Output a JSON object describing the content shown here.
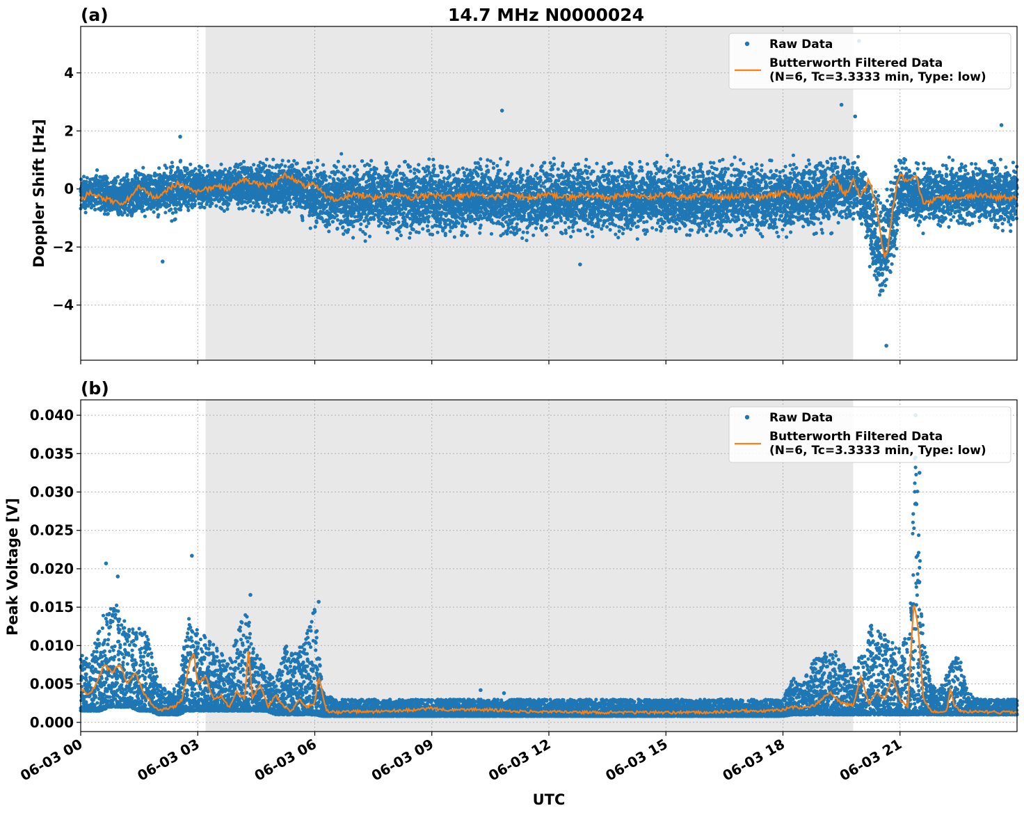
{
  "figure": {
    "title": "14.7 MHz N0000024",
    "xlabel": "UTC"
  },
  "colors": {
    "raw": "#1f77b4",
    "filtered": "#ff7f0e",
    "shade": "#e8e8e8",
    "grid": "#b0b0b0"
  },
  "chart_data": [
    {
      "type": "scatter",
      "panel": "(a)",
      "title": "14.7 MHz N0000024",
      "xlabel": "",
      "ylabel": "Doppler Shift [Hz]",
      "xlim_hours": [
        0,
        24
      ],
      "ylim": [
        -5.9,
        5.6
      ],
      "yticks": [
        {
          "value": 4,
          "label": "4"
        },
        {
          "value": 2,
          "label": "2"
        },
        {
          "value": 0,
          "label": "0"
        },
        {
          "value": -2,
          "label": "−2"
        },
        {
          "value": -4,
          "label": "−4"
        }
      ],
      "xticks": [
        {
          "hour": 0,
          "label": "06-03 00"
        },
        {
          "hour": 3,
          "label": "06-03 03"
        },
        {
          "hour": 6,
          "label": "06-03 06"
        },
        {
          "hour": 9,
          "label": "06-03 09"
        },
        {
          "hour": 12,
          "label": "06-03 12"
        },
        {
          "hour": 15,
          "label": "06-03 15"
        },
        {
          "hour": 18,
          "label": "06-03 18"
        },
        {
          "hour": 21,
          "label": "06-03 21"
        }
      ],
      "shaded_interval_hours": [
        3.2,
        19.8
      ],
      "grid": true,
      "legend": {
        "placement": "upper right",
        "entries": [
          {
            "label": "Raw Data",
            "style": "dot"
          },
          {
            "label": "Butterworth Filtered Data",
            "label2": "(N=6, Tc=3.3333 min, Type: low)",
            "style": "line"
          }
        ]
      },
      "series": [
        {
          "name": "Raw Data",
          "style": "scatter",
          "x": [
            0.0,
            0.5,
            1.0,
            1.5,
            2.0,
            2.5,
            3.0,
            3.5,
            4.0,
            4.5,
            5.0,
            5.5,
            6.0,
            6.5,
            7.0,
            7.5,
            8.0,
            8.5,
            9.0,
            9.5,
            10.0,
            10.5,
            11.0,
            11.5,
            12.0,
            12.5,
            13.0,
            13.5,
            14.0,
            14.5,
            15.0,
            15.5,
            16.0,
            16.5,
            17.0,
            17.5,
            18.0,
            18.5,
            19.0,
            19.5,
            20.0,
            20.3,
            20.5,
            20.7,
            21.0,
            21.5,
            22.0,
            22.5,
            23.0,
            23.5,
            24.0
          ],
          "y_upper": [
            0.7,
            0.8,
            0.6,
            0.9,
            1.0,
            1.3,
            0.9,
            1.0,
            1.1,
            1.2,
            1.3,
            1.2,
            1.2,
            1.3,
            1.2,
            1.3,
            1.2,
            1.2,
            1.3,
            1.2,
            1.2,
            1.3,
            1.2,
            1.2,
            1.2,
            1.3,
            1.2,
            1.2,
            1.2,
            1.2,
            1.2,
            1.2,
            1.2,
            1.2,
            1.2,
            1.2,
            1.2,
            1.3,
            1.4,
            1.6,
            1.3,
            0.8,
            0.5,
            0.9,
            1.3,
            1.1,
            1.1,
            1.2,
            1.2,
            1.3,
            1.2
          ],
          "y_lower": [
            -1.0,
            -1.1,
            -1.2,
            -1.1,
            -1.1,
            -1.3,
            -0.8,
            -0.9,
            -0.9,
            -1.0,
            -1.1,
            -1.0,
            -1.8,
            -1.9,
            -1.9,
            -1.9,
            -1.9,
            -1.9,
            -1.9,
            -1.9,
            -1.9,
            -1.9,
            -1.9,
            -1.9,
            -1.9,
            -1.9,
            -1.9,
            -1.9,
            -1.9,
            -1.9,
            -1.9,
            -1.9,
            -1.9,
            -1.9,
            -1.9,
            -1.9,
            -1.9,
            -1.8,
            -1.7,
            -1.5,
            -1.3,
            -3.5,
            -5.0,
            -4.0,
            -1.5,
            -1.6,
            -1.6,
            -1.6,
            -1.6,
            -1.6,
            -1.6
          ],
          "outliers": [
            {
              "x": 2.1,
              "y": -2.5
            },
            {
              "x": 2.55,
              "y": 1.8
            },
            {
              "x": 10.8,
              "y": 2.7
            },
            {
              "x": 12.8,
              "y": -2.6
            },
            {
              "x": 19.5,
              "y": 2.9
            },
            {
              "x": 19.85,
              "y": 2.5
            },
            {
              "x": 19.95,
              "y": 5.1
            },
            {
              "x": 20.65,
              "y": -5.4
            },
            {
              "x": 23.6,
              "y": 2.2
            }
          ]
        },
        {
          "name": "Butterworth Filtered Data",
          "style": "line",
          "x": [
            0.0,
            0.25,
            0.5,
            0.75,
            1.0,
            1.25,
            1.5,
            1.75,
            2.0,
            2.25,
            2.5,
            2.75,
            3.0,
            3.25,
            3.5,
            3.75,
            4.0,
            4.25,
            4.5,
            4.75,
            5.0,
            5.25,
            5.5,
            5.75,
            6.0,
            6.25,
            6.5,
            7.0,
            7.5,
            8.0,
            8.5,
            9.0,
            9.5,
            10.0,
            10.5,
            11.0,
            11.5,
            12.0,
            12.5,
            13.0,
            13.5,
            14.0,
            14.5,
            15.0,
            15.5,
            16.0,
            16.5,
            17.0,
            17.5,
            18.0,
            18.5,
            19.0,
            19.3,
            19.6,
            19.8,
            20.0,
            20.2,
            20.4,
            20.5,
            20.6,
            20.7,
            20.8,
            20.9,
            21.0,
            21.2,
            21.4,
            21.6,
            21.8,
            22.0,
            22.5,
            23.0,
            23.5,
            24.0
          ],
          "y": [
            -0.4,
            -0.1,
            -0.3,
            -0.4,
            -0.5,
            -0.3,
            0.1,
            -0.2,
            -0.3,
            0.0,
            0.2,
            0.0,
            -0.1,
            0.0,
            0.1,
            0.0,
            0.2,
            0.3,
            0.2,
            0.1,
            0.2,
            0.5,
            0.3,
            0.1,
            0.2,
            -0.2,
            -0.4,
            -0.2,
            -0.3,
            -0.2,
            -0.3,
            -0.2,
            -0.3,
            -0.2,
            -0.3,
            -0.2,
            -0.3,
            -0.2,
            -0.3,
            -0.2,
            -0.3,
            -0.2,
            -0.3,
            -0.2,
            -0.3,
            -0.2,
            -0.3,
            -0.2,
            -0.3,
            -0.1,
            -0.3,
            -0.2,
            0.4,
            -0.2,
            0.3,
            -0.3,
            0.3,
            -0.6,
            -1.6,
            -2.4,
            -2.0,
            -0.8,
            0.0,
            0.5,
            0.2,
            0.5,
            -0.5,
            -0.4,
            -0.3,
            -0.3,
            -0.2,
            -0.3,
            -0.3
          ]
        }
      ]
    },
    {
      "type": "scatter",
      "panel": "(b)",
      "title": "",
      "xlabel": "UTC",
      "ylabel": "Peak Voltage [V]",
      "xlim_hours": [
        0,
        24
      ],
      "ylim": [
        -0.0012,
        0.042
      ],
      "yticks": [
        {
          "value": 0.04,
          "label": "0.040"
        },
        {
          "value": 0.035,
          "label": "0.035"
        },
        {
          "value": 0.03,
          "label": "0.030"
        },
        {
          "value": 0.025,
          "label": "0.025"
        },
        {
          "value": 0.02,
          "label": "0.020"
        },
        {
          "value": 0.015,
          "label": "0.015"
        },
        {
          "value": 0.01,
          "label": "0.010"
        },
        {
          "value": 0.005,
          "label": "0.005"
        },
        {
          "value": 0.0,
          "label": "0.000"
        }
      ],
      "xticks": [
        {
          "hour": 0,
          "label": "06-03 00"
        },
        {
          "hour": 3,
          "label": "06-03 03"
        },
        {
          "hour": 6,
          "label": "06-03 06"
        },
        {
          "hour": 9,
          "label": "06-03 09"
        },
        {
          "hour": 12,
          "label": "06-03 12"
        },
        {
          "hour": 15,
          "label": "06-03 15"
        },
        {
          "hour": 18,
          "label": "06-03 18"
        },
        {
          "hour": 21,
          "label": "06-03 21"
        }
      ],
      "shaded_interval_hours": [
        3.2,
        19.8
      ],
      "grid": true,
      "legend": {
        "placement": "upper right",
        "entries": [
          {
            "label": "Raw Data",
            "style": "dot"
          },
          {
            "label": "Butterworth Filtered Data",
            "label2": "(N=6, Tc=3.3333 min, Type: low)",
            "style": "line"
          }
        ]
      },
      "series": [
        {
          "name": "Raw Data",
          "style": "scatter",
          "x": [
            0.0,
            0.25,
            0.5,
            0.75,
            1.0,
            1.25,
            1.5,
            1.75,
            2.0,
            2.25,
            2.5,
            2.75,
            3.0,
            3.25,
            3.5,
            3.75,
            4.0,
            4.25,
            4.5,
            4.75,
            5.0,
            5.25,
            5.5,
            5.75,
            6.0,
            6.2,
            6.5,
            7.0,
            8.0,
            9.0,
            10.0,
            11.0,
            12.0,
            13.0,
            14.0,
            15.0,
            16.0,
            17.0,
            18.0,
            18.25,
            18.5,
            18.75,
            19.0,
            19.25,
            19.5,
            19.75,
            20.0,
            20.25,
            20.5,
            20.75,
            21.0,
            21.25,
            21.4,
            21.6,
            21.8,
            22.0,
            22.25,
            22.5,
            22.75,
            23.0,
            23.5,
            24.0
          ],
          "y_upper": [
            0.009,
            0.008,
            0.013,
            0.016,
            0.015,
            0.012,
            0.013,
            0.011,
            0.005,
            0.004,
            0.005,
            0.014,
            0.012,
            0.011,
            0.01,
            0.008,
            0.011,
            0.016,
            0.009,
            0.007,
            0.006,
            0.01,
            0.009,
            0.011,
            0.015,
            0.004,
            0.003,
            0.003,
            0.003,
            0.003,
            0.003,
            0.003,
            0.003,
            0.003,
            0.003,
            0.003,
            0.003,
            0.003,
            0.003,
            0.006,
            0.005,
            0.008,
            0.009,
            0.01,
            0.008,
            0.007,
            0.009,
            0.013,
            0.012,
            0.011,
            0.01,
            0.012,
            0.038,
            0.012,
            0.005,
            0.004,
            0.007,
            0.009,
            0.004,
            0.003,
            0.003,
            0.003
          ],
          "y_lower": [
            0.0015,
            0.0015,
            0.0015,
            0.002,
            0.002,
            0.002,
            0.0015,
            0.0015,
            0.001,
            0.001,
            0.001,
            0.0015,
            0.0015,
            0.0015,
            0.0015,
            0.0015,
            0.0015,
            0.0015,
            0.0015,
            0.0015,
            0.001,
            0.001,
            0.001,
            0.001,
            0.001,
            0.0008,
            0.0008,
            0.0008,
            0.0008,
            0.0008,
            0.0008,
            0.0008,
            0.0008,
            0.0008,
            0.0008,
            0.0008,
            0.0008,
            0.0008,
            0.0008,
            0.001,
            0.001,
            0.001,
            0.001,
            0.001,
            0.001,
            0.001,
            0.001,
            0.001,
            0.001,
            0.001,
            0.001,
            0.001,
            0.001,
            0.001,
            0.001,
            0.001,
            0.001,
            0.001,
            0.001,
            0.001,
            0.001,
            0.001
          ],
          "outliers": [
            {
              "x": 0.65,
              "y": 0.0207
            },
            {
              "x": 0.95,
              "y": 0.019
            },
            {
              "x": 2.85,
              "y": 0.0217
            },
            {
              "x": 4.35,
              "y": 0.0166
            },
            {
              "x": 6.1,
              "y": 0.0157
            },
            {
              "x": 10.25,
              "y": 0.0042
            },
            {
              "x": 10.85,
              "y": 0.0038
            },
            {
              "x": 21.4,
              "y": 0.04
            },
            {
              "x": 21.5,
              "y": 0.0325
            }
          ]
        },
        {
          "name": "Butterworth Filtered Data",
          "style": "line",
          "x": [
            0.0,
            0.2,
            0.4,
            0.6,
            0.8,
            1.0,
            1.2,
            1.4,
            1.6,
            1.8,
            2.0,
            2.2,
            2.4,
            2.6,
            2.8,
            2.9,
            3.0,
            3.2,
            3.4,
            3.6,
            3.8,
            4.0,
            4.2,
            4.3,
            4.4,
            4.6,
            4.8,
            5.0,
            5.2,
            5.4,
            5.6,
            5.8,
            6.0,
            6.1,
            6.3,
            6.6,
            7.0,
            7.5,
            8.0,
            8.5,
            9.0,
            9.5,
            10.0,
            10.5,
            11.0,
            11.5,
            12.0,
            12.5,
            13.0,
            13.5,
            14.0,
            14.5,
            15.0,
            15.5,
            16.0,
            16.5,
            17.0,
            17.5,
            18.0,
            18.2,
            18.5,
            18.8,
            19.0,
            19.2,
            19.5,
            19.8,
            20.0,
            20.2,
            20.4,
            20.6,
            20.8,
            21.0,
            21.2,
            21.35,
            21.45,
            21.6,
            21.8,
            22.0,
            22.2,
            22.3,
            22.4,
            22.6,
            23.0,
            23.5,
            24.0
          ],
          "y": [
            0.0045,
            0.0035,
            0.005,
            0.0075,
            0.0065,
            0.0075,
            0.005,
            0.0065,
            0.004,
            0.0025,
            0.0015,
            0.0018,
            0.002,
            0.003,
            0.008,
            0.009,
            0.005,
            0.006,
            0.003,
            0.0035,
            0.002,
            0.004,
            0.003,
            0.0095,
            0.003,
            0.005,
            0.002,
            0.0035,
            0.002,
            0.0015,
            0.003,
            0.002,
            0.0025,
            0.006,
            0.0015,
            0.0013,
            0.0014,
            0.0014,
            0.0015,
            0.0016,
            0.0018,
            0.0016,
            0.0017,
            0.0016,
            0.0015,
            0.0014,
            0.0014,
            0.0013,
            0.0013,
            0.0013,
            0.0013,
            0.0013,
            0.0013,
            0.0013,
            0.0013,
            0.0014,
            0.0015,
            0.0015,
            0.0016,
            0.002,
            0.0018,
            0.0022,
            0.003,
            0.004,
            0.0025,
            0.0022,
            0.006,
            0.0025,
            0.004,
            0.003,
            0.006,
            0.003,
            0.002,
            0.0155,
            0.013,
            0.003,
            0.0015,
            0.0013,
            0.0015,
            0.0045,
            0.002,
            0.0014,
            0.0014,
            0.0013,
            0.0013
          ]
        }
      ]
    }
  ]
}
